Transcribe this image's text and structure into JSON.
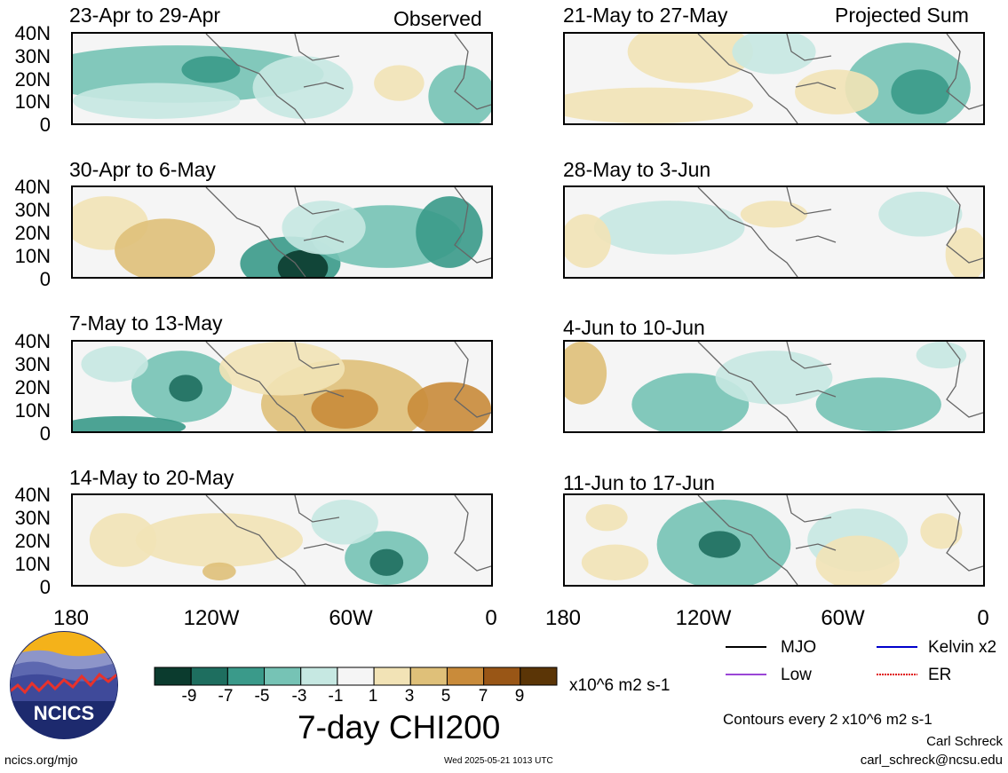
{
  "tags": {
    "observed": "Observed",
    "projected": "Projected Sum"
  },
  "panels": [
    {
      "id": "p1",
      "title": "23-Apr to 29-Apr"
    },
    {
      "id": "p2",
      "title": "30-Apr to 6-May"
    },
    {
      "id": "p3",
      "title": "7-May to 13-May"
    },
    {
      "id": "p4",
      "title": "14-May to 20-May"
    },
    {
      "id": "p5",
      "title": "21-May to 27-May"
    },
    {
      "id": "p6",
      "title": "28-May to 3-Jun"
    },
    {
      "id": "p7",
      "title": "4-Jun to 10-Jun"
    },
    {
      "id": "p8",
      "title": "11-Jun to 17-Jun"
    }
  ],
  "y_ticks": [
    "40N",
    "30N",
    "20N",
    "10N",
    "0"
  ],
  "x_ticks": [
    "180",
    "120W",
    "60W",
    "0"
  ],
  "colorbar": {
    "colors": [
      "#0b3b2e",
      "#1e6e5f",
      "#3a9a8a",
      "#76c3b5",
      "#c6e8e2",
      "#f5f5f5",
      "#f2e3b6",
      "#dfc079",
      "#c98b3a",
      "#995616",
      "#5b3506"
    ],
    "labels": [
      "-9",
      "-7",
      "-5",
      "-3",
      "-1",
      "1",
      "3",
      "5",
      "7",
      "9"
    ],
    "units": "x10^6 m2 s-1",
    "title": "7-day CHI200"
  },
  "legend": {
    "mjo": "MJO",
    "kelvin": "Kelvin x2",
    "low": "Low",
    "er": "ER",
    "colors": {
      "mjo": "#000000",
      "kelvin": "#0000cc",
      "low": "#9a45d6",
      "er": "#e01010"
    }
  },
  "contours_note": "Contours every 2 x10^6 m2 s-1",
  "author": "Carl Schreck",
  "email": "carl_schreck@ncsu.edu",
  "website": "ncics.org/mjo",
  "timestamp": "Wed 2025-05-21 1013 UTC",
  "logo_text": "NCICS"
}
